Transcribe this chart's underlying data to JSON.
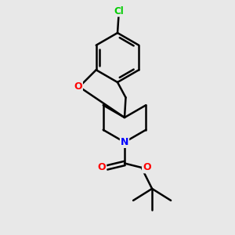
{
  "background_color": "#e8e8e8",
  "atom_colors": {
    "Cl": "#00cc00",
    "O": "#ff0000",
    "N": "#0000ff",
    "C": "#000000"
  },
  "bond_color": "#000000",
  "bond_width": 1.8,
  "figsize": [
    3.0,
    3.0
  ],
  "dpi": 100,
  "xlim": [
    0,
    10
  ],
  "ylim": [
    0,
    10
  ]
}
